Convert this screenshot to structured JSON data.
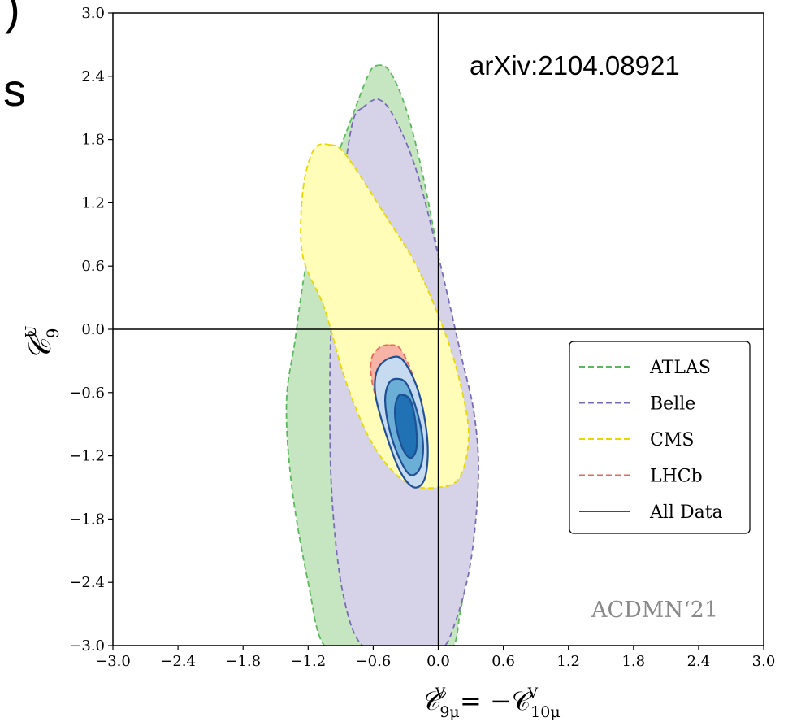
{
  "fragments": {
    "cut_glyph_1": ")",
    "cut_glyph_2": "s"
  },
  "annotation_arxiv": "arXiv:2104.08921",
  "watermark": "ACDMN‘21",
  "chart_data": {
    "type": "contour",
    "xlabel": {
      "main": "𝒞",
      "sub": "9μ",
      "sup": "V",
      "eq": "= −𝒞",
      "sub2": "10μ",
      "sup2": "V"
    },
    "ylabel": {
      "main": "𝒞",
      "sub": "9",
      "sup": "U"
    },
    "xlim": [
      -3.0,
      3.0
    ],
    "ylim": [
      -3.0,
      3.0
    ],
    "xticks": [
      -3.0,
      -2.4,
      -1.8,
      -1.2,
      -0.6,
      0.0,
      0.6,
      1.2,
      1.8,
      2.4,
      3.0
    ],
    "yticks": [
      -3.0,
      -2.4,
      -1.8,
      -1.2,
      -0.6,
      0.0,
      0.6,
      1.2,
      1.8,
      2.4,
      3.0
    ],
    "xtick_labels": [
      "−3.0",
      "−2.4",
      "−1.8",
      "−1.2",
      "−0.6",
      "0.0",
      "0.6",
      "1.2",
      "1.8",
      "2.4",
      "3.0"
    ],
    "ytick_labels": [
      "−3.0",
      "−2.4",
      "−1.8",
      "−1.2",
      "−0.6",
      "0.0",
      "0.6",
      "1.2",
      "1.8",
      "2.4",
      "3.0"
    ],
    "reference_lines": {
      "x": 0.0,
      "y": 0.0
    },
    "legend_position": "center-right",
    "series": [
      {
        "name": "ATLAS",
        "style": "dashed",
        "line_color": "#5cb85c",
        "fill_color": "#c5e6c0",
        "outline": [
          [
            -0.57,
            2.5
          ],
          [
            -0.45,
            2.45
          ],
          [
            -0.3,
            2.1
          ],
          [
            -0.15,
            1.5
          ],
          [
            0.0,
            0.7
          ],
          [
            0.1,
            0.0
          ],
          [
            0.2,
            -0.8
          ],
          [
            0.27,
            -1.5
          ],
          [
            0.28,
            -2.1
          ],
          [
            0.2,
            -2.7
          ],
          [
            0.1,
            -3.05
          ],
          [
            -0.3,
            -3.05
          ],
          [
            -0.7,
            -3.05
          ],
          [
            -1.05,
            -3.0
          ],
          [
            -1.2,
            -2.4
          ],
          [
            -1.35,
            -1.5
          ],
          [
            -1.4,
            -0.7
          ],
          [
            -1.32,
            -0.1
          ],
          [
            -1.22,
            0.6
          ],
          [
            -1.05,
            1.3
          ],
          [
            -0.8,
            2.0
          ],
          [
            -0.65,
            2.4
          ]
        ]
      },
      {
        "name": "Belle",
        "style": "dashed",
        "line_color": "#7a6bb8",
        "fill_color": "#d6d3e8",
        "outline": [
          [
            -0.7,
            2.1
          ],
          [
            -0.55,
            2.18
          ],
          [
            -0.4,
            2.0
          ],
          [
            -0.2,
            1.5
          ],
          [
            0.0,
            0.7
          ],
          [
            0.2,
            -0.2
          ],
          [
            0.33,
            -0.8
          ],
          [
            0.37,
            -1.4
          ],
          [
            0.3,
            -2.2
          ],
          [
            0.15,
            -2.8
          ],
          [
            0.0,
            -3.05
          ],
          [
            -0.35,
            -3.05
          ],
          [
            -0.7,
            -3.0
          ],
          [
            -0.88,
            -2.5
          ],
          [
            -0.98,
            -1.6
          ],
          [
            -1.0,
            -0.6
          ],
          [
            -0.98,
            0.2
          ],
          [
            -0.92,
            1.0
          ],
          [
            -0.85,
            1.6
          ],
          [
            -0.78,
            2.0
          ]
        ]
      },
      {
        "name": "CMS",
        "style": "dashed",
        "line_color": "#e8d800",
        "fill_color": "#fffdb8",
        "outline": [
          [
            -1.0,
            1.75
          ],
          [
            -0.85,
            1.65
          ],
          [
            -0.5,
            1.1
          ],
          [
            -0.2,
            0.6
          ],
          [
            0.05,
            0.0
          ],
          [
            0.2,
            -0.5
          ],
          [
            0.28,
            -1.0
          ],
          [
            0.2,
            -1.4
          ],
          [
            0.0,
            -1.5
          ],
          [
            -0.3,
            -1.45
          ],
          [
            -0.6,
            -1.1
          ],
          [
            -0.85,
            -0.5
          ],
          [
            -1.05,
            0.2
          ],
          [
            -1.25,
            0.7
          ],
          [
            -1.25,
            1.3
          ],
          [
            -1.15,
            1.7
          ]
        ]
      },
      {
        "name": "LHCb",
        "style": "dashed",
        "line_color": "#e8675a",
        "fill_color": "#f6b3a6",
        "outline": [
          [
            -0.45,
            -0.15
          ],
          [
            -0.34,
            -0.2
          ],
          [
            -0.2,
            -0.55
          ],
          [
            -0.12,
            -1.05
          ],
          [
            -0.15,
            -1.4
          ],
          [
            -0.24,
            -1.48
          ],
          [
            -0.36,
            -1.3
          ],
          [
            -0.48,
            -0.95
          ],
          [
            -0.6,
            -0.55
          ],
          [
            -0.62,
            -0.3
          ],
          [
            -0.55,
            -0.18
          ]
        ]
      },
      {
        "name": "All Data",
        "style": "solid",
        "line_color": "#1f4f94",
        "levels": [
          {
            "fill_color": "#c6dbef",
            "outline": [
              [
                -0.44,
                -0.27
              ],
              [
                -0.32,
                -0.3
              ],
              [
                -0.18,
                -0.6
              ],
              [
                -0.1,
                -1.05
              ],
              [
                -0.12,
                -1.4
              ],
              [
                -0.22,
                -1.5
              ],
              [
                -0.35,
                -1.35
              ],
              [
                -0.48,
                -1.0
              ],
              [
                -0.58,
                -0.62
              ],
              [
                -0.56,
                -0.38
              ]
            ]
          },
          {
            "fill_color": "#6baed6",
            "outline": [
              [
                -0.39,
                -0.47
              ],
              [
                -0.29,
                -0.52
              ],
              [
                -0.19,
                -0.8
              ],
              [
                -0.14,
                -1.1
              ],
              [
                -0.17,
                -1.32
              ],
              [
                -0.26,
                -1.38
              ],
              [
                -0.36,
                -1.22
              ],
              [
                -0.45,
                -0.95
              ],
              [
                -0.49,
                -0.68
              ],
              [
                -0.46,
                -0.52
              ]
            ]
          },
          {
            "fill_color": "#2171b5",
            "outline": [
              [
                -0.34,
                -0.62
              ],
              [
                -0.26,
                -0.67
              ],
              [
                -0.21,
                -0.88
              ],
              [
                -0.2,
                -1.12
              ],
              [
                -0.25,
                -1.22
              ],
              [
                -0.32,
                -1.15
              ],
              [
                -0.38,
                -0.96
              ],
              [
                -0.4,
                -0.78
              ],
              [
                -0.38,
                -0.66
              ]
            ]
          }
        ]
      }
    ]
  }
}
